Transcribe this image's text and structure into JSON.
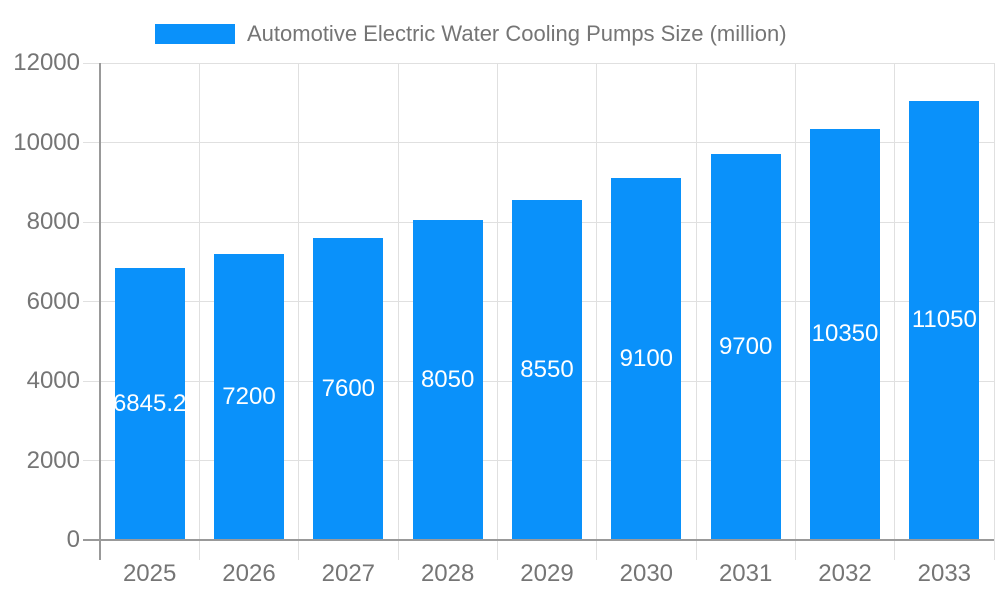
{
  "chart_data": {
    "type": "bar",
    "title": "Automotive Electric Water Cooling Pumps Size (million)",
    "legend": [
      "Automotive Electric Water Cooling Pumps Size (million)"
    ],
    "legend_position": "top",
    "categories": [
      "2025",
      "2026",
      "2027",
      "2028",
      "2029",
      "2030",
      "2031",
      "2032",
      "2033"
    ],
    "values": [
      6845.2,
      7200,
      7600,
      8050,
      8550,
      9100,
      9700,
      10350,
      11050
    ],
    "value_labels": [
      "6845.2",
      "7200",
      "7600",
      "8050",
      "8550",
      "9100",
      "9700",
      "10350",
      "11050"
    ],
    "xlabel": "",
    "ylabel": "",
    "ylim": [
      0,
      12000
    ],
    "yticks": [
      0,
      2000,
      4000,
      6000,
      8000,
      10000,
      12000
    ],
    "ytick_labels": [
      "0",
      "2000",
      "4000",
      "6000",
      "8000",
      "10000",
      "12000"
    ],
    "grid": true,
    "colors": {
      "bar": "#0a91fa",
      "grid": "#e0e0e0",
      "axis": "#999999",
      "tick_text": "#757575",
      "legend_text": "#757575",
      "bar_label": "#ffffff",
      "background": "#ffffff"
    }
  }
}
